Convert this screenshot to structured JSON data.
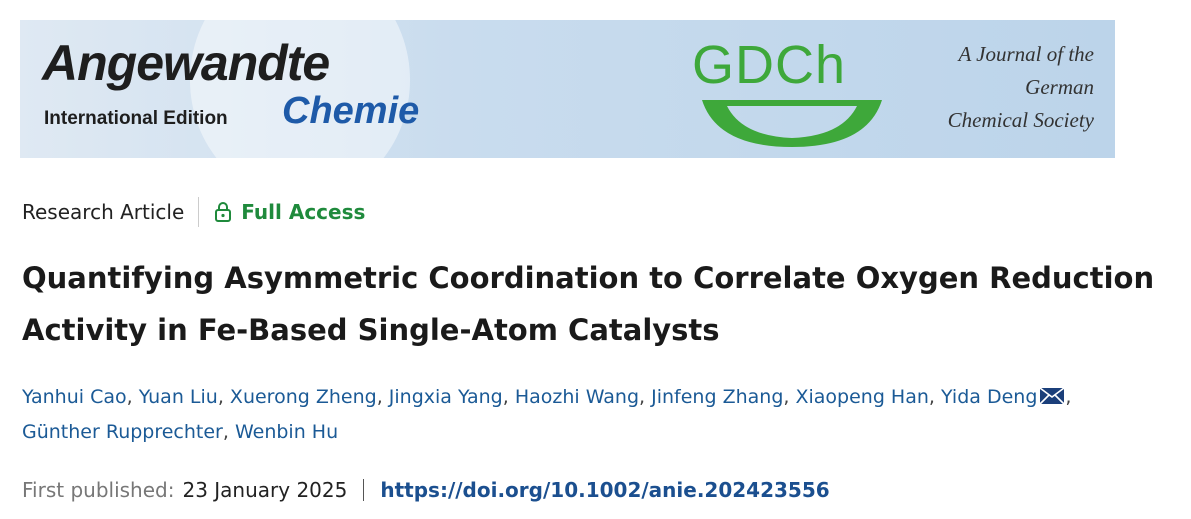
{
  "banner": {
    "journal": "Angewandte",
    "edition": "International Edition",
    "journal_sub": "Chemie",
    "society_logo": "GDCh",
    "tagline": [
      "A Journal of the",
      "German",
      "Chemical Society"
    ]
  },
  "article": {
    "type": "Research Article",
    "access": "Full Access",
    "title": "Quantifying Asymmetric Coordination to Correlate Oxygen Reduction Activity in Fe-Based Single-Atom Catalysts",
    "author_separator": ",",
    "authors": [
      "Yanhui Cao",
      "Yuan Liu",
      "Xuerong Zheng",
      "Jingxia Yang",
      "Haozhi Wang",
      "Jinfeng Zhang",
      "Xiaopeng Han",
      "Yida Deng",
      "Günther Rupprechter",
      "Wenbin Hu"
    ],
    "corresponding_author": 7,
    "published_label": "First published:",
    "published_date": "23 January 2025",
    "doi": "https://doi.org/10.1002/anie.202423556"
  }
}
